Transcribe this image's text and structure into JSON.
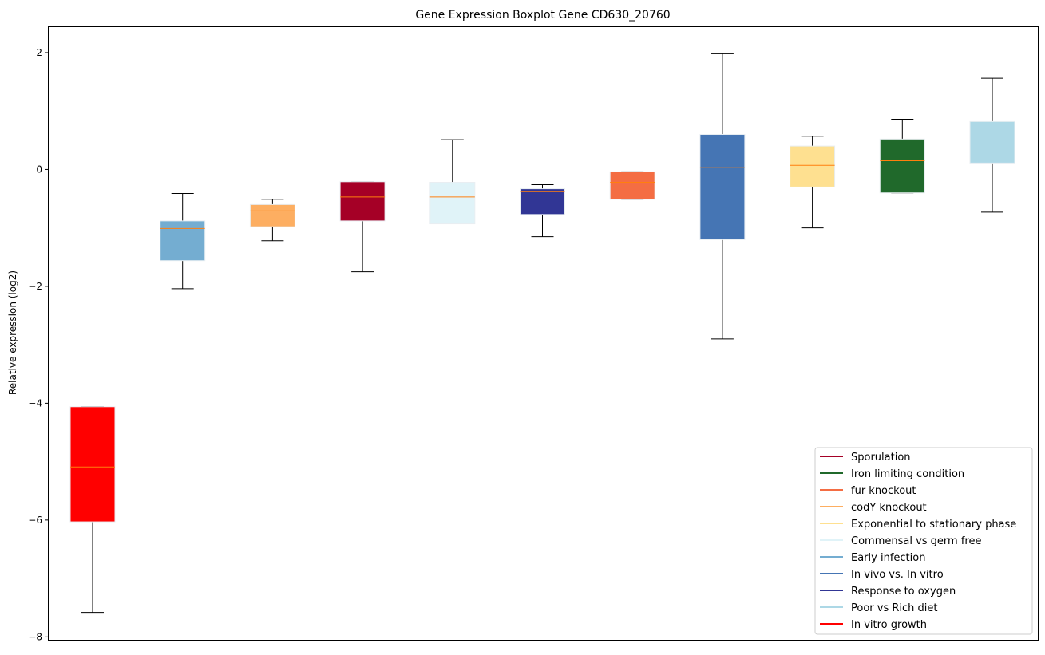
{
  "chart_data": {
    "type": "box",
    "title": "Gene Expression Boxplot Gene CD630_20760",
    "xlabel": "",
    "ylabel": "Relative expression (log2)",
    "ylim": [
      -8.05,
      2.45
    ],
    "yticks": [
      2,
      0,
      -2,
      -4,
      -6,
      -8
    ],
    "ytick_labels": [
      "2",
      "0",
      "−2",
      "−4",
      "−6",
      "−8"
    ],
    "grid": false,
    "legend_position": "lower-right",
    "median_color": "#ff7f0e",
    "series": [
      {
        "name": "In vitro growth",
        "color": "#ff0000",
        "whislo": -7.58,
        "q1": -6.03,
        "med": -5.09,
        "q3": -4.06,
        "whishi": -4.06
      },
      {
        "name": "Early infection",
        "color": "#74add1",
        "whislo": -2.04,
        "q1": -1.56,
        "med": -1.01,
        "q3": -0.88,
        "whishi": -0.41
      },
      {
        "name": "codY knockout",
        "color": "#fdae61",
        "whislo": -1.22,
        "q1": -0.98,
        "med": -0.71,
        "q3": -0.6,
        "whishi": -0.51
      },
      {
        "name": "Sporulation",
        "color": "#a50026",
        "whislo": -1.75,
        "q1": -0.88,
        "med": -0.47,
        "q3": -0.21,
        "whishi": -0.21
      },
      {
        "name": "Commensal vs germ free",
        "color": "#e0f3f8",
        "whislo": -0.93,
        "q1": -0.93,
        "med": -0.47,
        "q3": -0.22,
        "whishi": 0.51
      },
      {
        "name": "Response to oxygen",
        "color": "#313695",
        "whislo": -1.15,
        "q1": -0.77,
        "med": -0.38,
        "q3": -0.33,
        "whishi": -0.26
      },
      {
        "name": "fur knockout",
        "color": "#f46d43",
        "whislo": -0.51,
        "q1": -0.51,
        "med": -0.22,
        "q3": -0.04,
        "whishi": -0.04
      },
      {
        "name": "In vivo vs. In vitro",
        "color": "#4575b4",
        "whislo": -2.9,
        "q1": -1.2,
        "med": 0.03,
        "q3": 0.6,
        "whishi": 1.98
      },
      {
        "name": "Exponential to stationary phase",
        "color": "#fee090",
        "whislo": -1.0,
        "q1": -0.3,
        "med": 0.07,
        "q3": 0.4,
        "whishi": 0.57
      },
      {
        "name": "Iron limiting condition",
        "color": "#20692b",
        "whislo": -0.4,
        "q1": -0.4,
        "med": 0.15,
        "q3": 0.52,
        "whishi": 0.86
      },
      {
        "name": "Poor vs Rich diet",
        "color": "#add8e6",
        "whislo": -0.73,
        "q1": 0.11,
        "med": 0.3,
        "q3": 0.82,
        "whishi": 1.56
      }
    ],
    "legend_order": [
      "Sporulation",
      "Iron limiting condition",
      "fur knockout",
      "codY knockout",
      "Exponential to stationary phase",
      "Commensal vs germ free",
      "Early infection",
      "In vivo vs. In vitro",
      "Response to oxygen",
      "Poor vs Rich diet",
      "In vitro growth"
    ]
  }
}
